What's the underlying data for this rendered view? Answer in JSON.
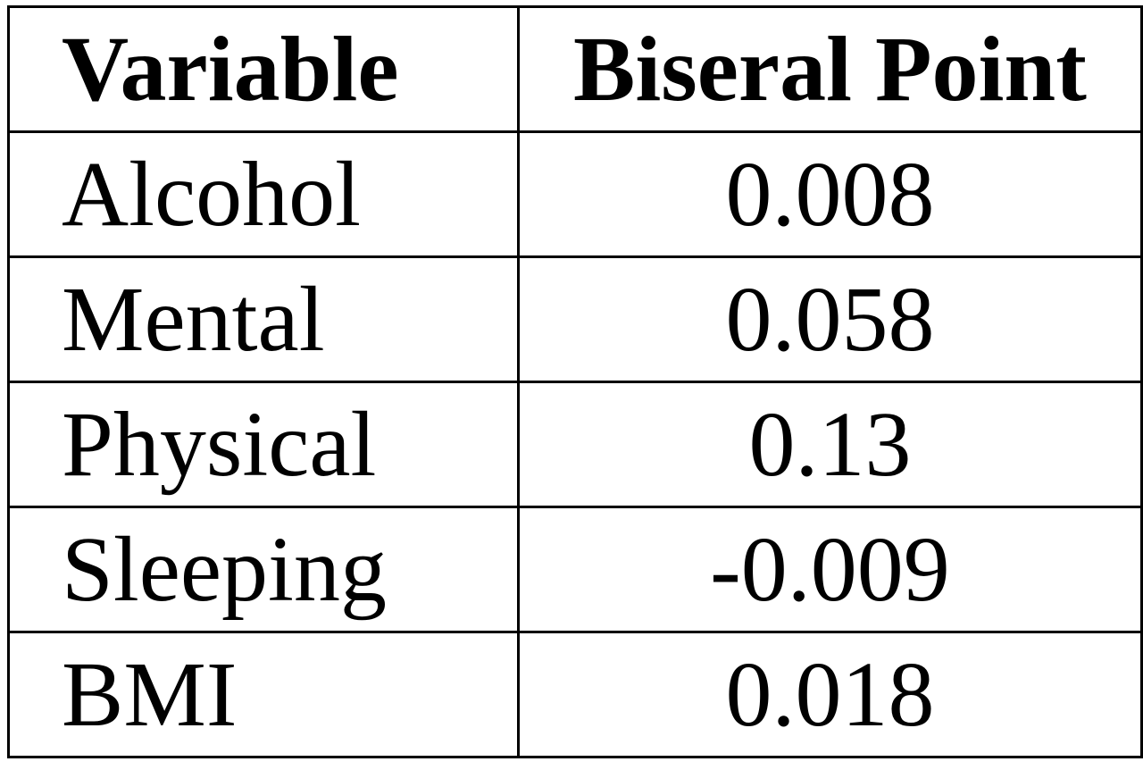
{
  "table": {
    "headers": {
      "variable": "Variable",
      "value": "Biseral Point"
    },
    "rows": [
      {
        "variable": "Alcohol",
        "value": "0.008"
      },
      {
        "variable": "Mental",
        "value": "0.058"
      },
      {
        "variable": "Physical",
        "value": "0.13"
      },
      {
        "variable": "Sleeping",
        "value": "-0.009"
      },
      {
        "variable": "BMI",
        "value": "0.018"
      }
    ]
  }
}
